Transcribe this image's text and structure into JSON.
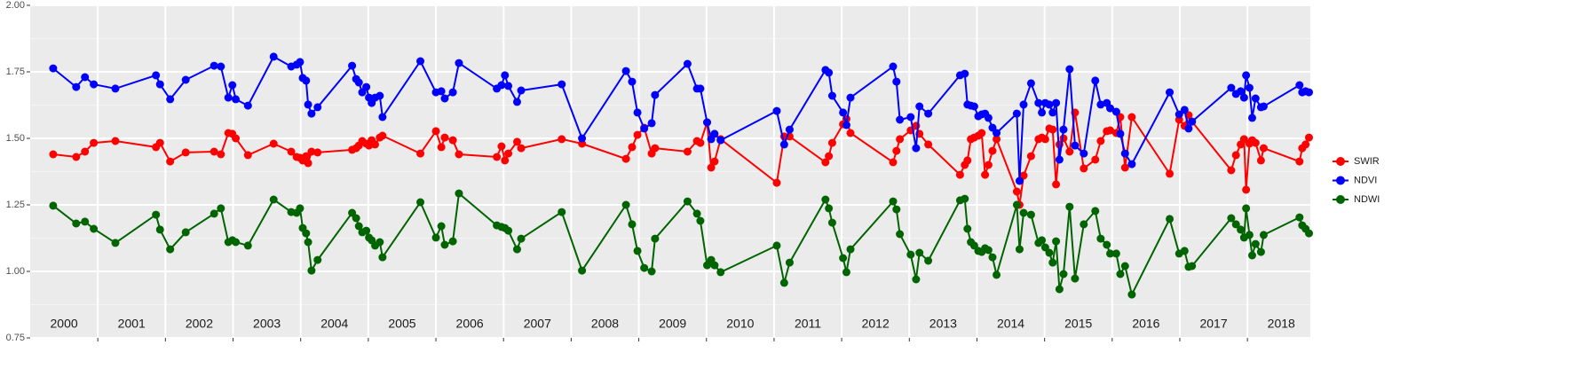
{
  "chart_data": {
    "type": "line",
    "x": [
      2000.34,
      2000.68,
      2000.81,
      2000.94,
      2001.26,
      2001.86,
      2001.92,
      2002.07,
      2002.3,
      2002.72,
      2002.82,
      2002.93,
      2002.99,
      2003.04,
      2003.22,
      2003.6,
      2003.86,
      2003.94,
      2003.99,
      2004.03,
      2004.08,
      2004.11,
      2004.16,
      2004.25,
      2004.76,
      2004.82,
      2004.86,
      2004.91,
      2004.97,
      2005.01,
      2005.05,
      2005.1,
      2005.17,
      2005.21,
      2005.77,
      2006.0,
      2006.08,
      2006.13,
      2006.25,
      2006.34,
      2006.9,
      2006.97,
      2007.02,
      2007.07,
      2007.2,
      2007.26,
      2007.86,
      2008.16,
      2008.81,
      2008.9,
      2008.98,
      2009.08,
      2009.19,
      2009.24,
      2009.72,
      2009.86,
      2009.91,
      2010.01,
      2010.07,
      2010.12,
      2010.21,
      2011.04,
      2011.15,
      2011.23,
      2011.76,
      2011.81,
      2011.86,
      2012.02,
      2012.07,
      2012.13,
      2012.76,
      2012.81,
      2012.86,
      2013.02,
      2013.1,
      2013.15,
      2013.28,
      2013.75,
      2013.82,
      2013.86,
      2013.91,
      2013.96,
      2014.02,
      2014.07,
      2014.12,
      2014.17,
      2014.23,
      2014.29,
      2014.59,
      2014.63,
      2014.69,
      2014.8,
      2014.91,
      2014.96,
      2015.01,
      2015.07,
      2015.12,
      2015.17,
      2015.22,
      2015.28,
      2015.37,
      2015.45,
      2015.58,
      2015.75,
      2015.83,
      2015.92,
      2015.97,
      2016.06,
      2016.12,
      2016.19,
      2016.29,
      2016.85,
      2016.99,
      2017.07,
      2017.13,
      2017.18,
      2017.76,
      2017.83,
      2017.9,
      2017.95,
      2017.98,
      2018.03,
      2018.07,
      2018.12,
      2018.2,
      2018.24,
      2018.77,
      2018.81,
      2018.86,
      2018.91
    ],
    "series": [
      {
        "name": "SWIR",
        "color": "#ff0000",
        "values": [
          1.44,
          1.43,
          1.45,
          1.483,
          1.49,
          1.467,
          1.483,
          1.413,
          1.447,
          1.45,
          1.44,
          1.52,
          1.517,
          1.5,
          1.437,
          1.48,
          1.45,
          1.43,
          1.427,
          1.417,
          1.433,
          1.407,
          1.45,
          1.447,
          1.457,
          1.463,
          1.473,
          1.49,
          1.48,
          1.473,
          1.493,
          1.477,
          1.503,
          1.51,
          1.443,
          1.527,
          1.467,
          1.503,
          1.493,
          1.44,
          1.43,
          1.47,
          1.417,
          1.443,
          1.487,
          1.463,
          1.497,
          1.48,
          1.423,
          1.467,
          1.513,
          1.54,
          1.443,
          1.463,
          1.45,
          1.49,
          1.483,
          1.56,
          1.39,
          1.413,
          1.497,
          1.333,
          1.507,
          1.507,
          1.41,
          1.433,
          1.483,
          1.553,
          1.573,
          1.52,
          1.41,
          1.453,
          1.497,
          1.53,
          1.547,
          1.517,
          1.477,
          1.363,
          1.4,
          1.417,
          1.497,
          1.503,
          1.51,
          1.52,
          1.363,
          1.4,
          1.453,
          1.497,
          1.3,
          1.25,
          1.36,
          1.433,
          1.497,
          1.503,
          1.497,
          1.537,
          1.533,
          1.327,
          1.477,
          1.5,
          1.45,
          1.597,
          1.387,
          1.42,
          1.49,
          1.527,
          1.53,
          1.52,
          1.58,
          1.39,
          1.58,
          1.367,
          1.57,
          1.547,
          1.587,
          1.563,
          1.38,
          1.437,
          1.477,
          1.497,
          1.307,
          1.48,
          1.493,
          1.483,
          1.417,
          1.463,
          1.413,
          1.463,
          1.477,
          1.503
        ]
      },
      {
        "name": "NDVI",
        "color": "#0000ff",
        "values": [
          1.763,
          1.693,
          1.73,
          1.703,
          1.687,
          1.737,
          1.703,
          1.647,
          1.72,
          1.773,
          1.77,
          1.653,
          1.7,
          1.647,
          1.623,
          1.807,
          1.77,
          1.777,
          1.787,
          1.727,
          1.717,
          1.627,
          1.593,
          1.617,
          1.773,
          1.723,
          1.71,
          1.673,
          1.693,
          1.653,
          1.633,
          1.653,
          1.66,
          1.58,
          1.79,
          1.673,
          1.677,
          1.65,
          1.673,
          1.783,
          1.687,
          1.7,
          1.737,
          1.697,
          1.637,
          1.68,
          1.703,
          1.5,
          1.753,
          1.713,
          1.597,
          1.537,
          1.557,
          1.663,
          1.78,
          1.687,
          1.687,
          1.56,
          1.497,
          1.517,
          1.493,
          1.603,
          1.477,
          1.533,
          1.757,
          1.747,
          1.66,
          1.597,
          1.55,
          1.653,
          1.77,
          1.713,
          1.57,
          1.58,
          1.463,
          1.62,
          1.593,
          1.737,
          1.743,
          1.627,
          1.623,
          1.62,
          1.583,
          1.59,
          1.593,
          1.577,
          1.54,
          1.52,
          1.593,
          1.34,
          1.627,
          1.707,
          1.633,
          1.597,
          1.633,
          1.627,
          1.597,
          1.633,
          1.42,
          1.533,
          1.76,
          1.473,
          1.443,
          1.717,
          1.627,
          1.633,
          1.613,
          1.6,
          1.517,
          1.443,
          1.403,
          1.673,
          1.59,
          1.607,
          1.537,
          1.563,
          1.69,
          1.667,
          1.677,
          1.653,
          1.737,
          1.69,
          1.577,
          1.65,
          1.617,
          1.62,
          1.7,
          1.673,
          1.677,
          1.673
        ]
      },
      {
        "name": "NDWI",
        "color": "#006400",
        "values": [
          1.247,
          1.18,
          1.187,
          1.16,
          1.107,
          1.213,
          1.157,
          1.083,
          1.147,
          1.217,
          1.237,
          1.11,
          1.117,
          1.11,
          1.097,
          1.27,
          1.223,
          1.22,
          1.237,
          1.163,
          1.143,
          1.11,
          1.003,
          1.043,
          1.22,
          1.2,
          1.17,
          1.147,
          1.153,
          1.127,
          1.117,
          1.097,
          1.11,
          1.053,
          1.26,
          1.127,
          1.17,
          1.1,
          1.113,
          1.293,
          1.173,
          1.167,
          1.163,
          1.153,
          1.083,
          1.123,
          1.223,
          1.003,
          1.25,
          1.177,
          1.077,
          1.013,
          1.0,
          1.123,
          1.263,
          1.217,
          1.19,
          1.023,
          1.043,
          1.023,
          0.997,
          1.097,
          0.957,
          1.033,
          1.27,
          1.237,
          1.183,
          1.05,
          0.997,
          1.083,
          1.263,
          1.233,
          1.14,
          1.063,
          0.97,
          1.07,
          1.04,
          1.267,
          1.273,
          1.16,
          1.11,
          1.097,
          1.077,
          1.073,
          1.087,
          1.08,
          1.053,
          0.987,
          1.25,
          1.083,
          1.22,
          1.213,
          1.107,
          1.117,
          1.09,
          1.07,
          1.033,
          1.113,
          0.933,
          0.99,
          1.243,
          0.973,
          1.177,
          1.227,
          1.123,
          1.1,
          1.067,
          1.067,
          0.99,
          1.02,
          0.913,
          1.197,
          1.067,
          1.077,
          1.017,
          1.02,
          1.2,
          1.177,
          1.157,
          1.127,
          1.237,
          1.137,
          1.06,
          1.103,
          1.073,
          1.137,
          1.203,
          1.173,
          1.16,
          1.143
        ]
      }
    ],
    "xlim": [
      2000,
      2018.93
    ],
    "xticks": [
      2001,
      2002,
      2003,
      2004,
      2005,
      2006,
      2007,
      2008,
      2009,
      2010,
      2011,
      2012,
      2013,
      2014,
      2015,
      2016,
      2017,
      2018
    ],
    "ylim": [
      0.75,
      2.0
    ],
    "yticks": [
      {
        "value": 0.75,
        "label": "0.75"
      },
      {
        "value": 1.0,
        "label": "1.00"
      },
      {
        "value": 1.25,
        "label": "1.25"
      },
      {
        "value": 1.5,
        "label": "1.50"
      },
      {
        "value": 1.75,
        "label": "1.75"
      },
      {
        "value": 2.0,
        "label": "2.00"
      }
    ],
    "annotations": [
      "2000",
      "2001",
      "2002",
      "2003",
      "2004",
      "2005",
      "2006",
      "2007",
      "2008",
      "2009",
      "2010",
      "2011",
      "2012",
      "2013",
      "2014",
      "2015",
      "2016",
      "2017",
      "2018"
    ],
    "grid": true,
    "legend": "right"
  }
}
